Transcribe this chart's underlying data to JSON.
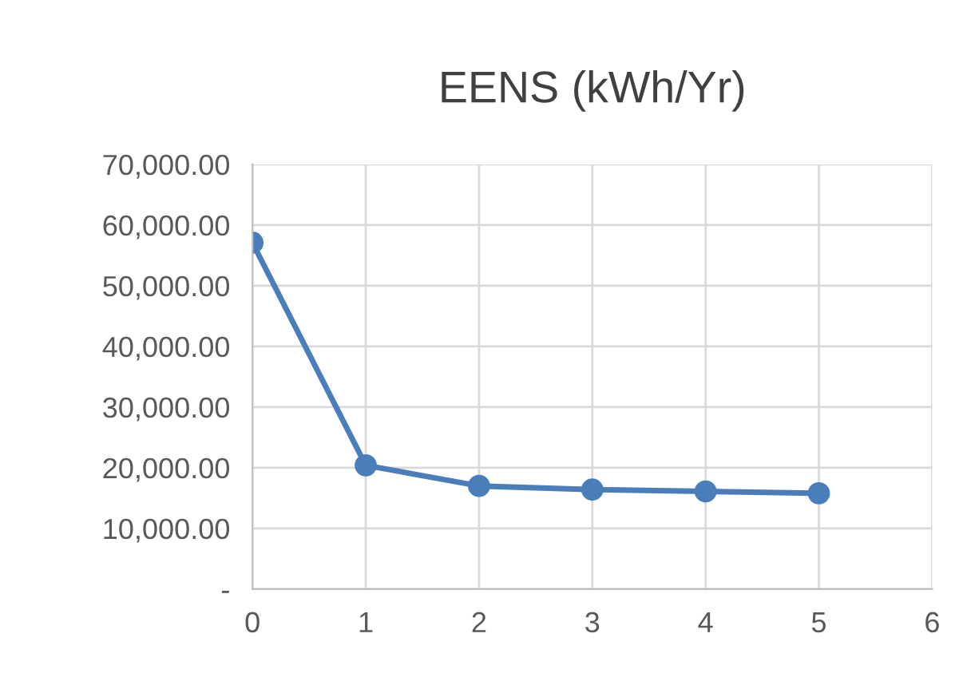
{
  "chart_data": {
    "type": "line",
    "title": "EENS (kWh/Yr)",
    "x": [
      0,
      1,
      2,
      3,
      4,
      5
    ],
    "series": [
      {
        "color": "#4a7ebb",
        "values": [
          57100,
          20400,
          17000,
          16400,
          16100,
          15800
        ]
      }
    ],
    "xlim": [
      0,
      6
    ],
    "xticks": [
      0,
      1,
      2,
      3,
      4,
      5,
      6
    ],
    "ylim": [
      0,
      70000
    ],
    "yticks": [
      {
        "value": 0,
        "label": "-"
      },
      {
        "value": 10000,
        "label": "10,000.00"
      },
      {
        "value": 20000,
        "label": "20,000.00"
      },
      {
        "value": 30000,
        "label": "30,000.00"
      },
      {
        "value": 40000,
        "label": "40,000.00"
      },
      {
        "value": 50000,
        "label": "50,000.00"
      },
      {
        "value": 60000,
        "label": "60,000.00"
      },
      {
        "value": 70000,
        "label": "70,000.00"
      }
    ],
    "grid": true,
    "marker": "circle",
    "line_style": "solid"
  }
}
